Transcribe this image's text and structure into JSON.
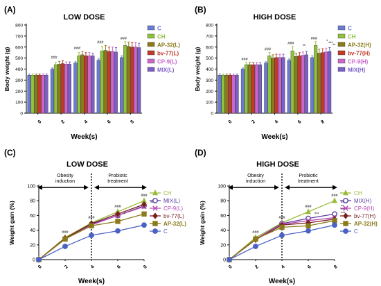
{
  "chart_data": [
    {
      "panel_label": "(A)",
      "type": "bar",
      "title": "LOW DOSE",
      "xlabel": "Week(s)",
      "ylabel": "Body weight (g)",
      "ylim": [
        0,
        800
      ],
      "yticks": [
        "0",
        "100",
        "200",
        "300",
        "400",
        "500",
        "600",
        "700",
        "800"
      ],
      "categories": [
        "0",
        "2",
        "4",
        "6",
        "8"
      ],
      "grid": false,
      "legend_position": "right",
      "series": [
        {
          "name": "C",
          "color": "#6b7bd4",
          "values": [
            345,
            400,
            455,
            480,
            505
          ],
          "errors": [
            10,
            10,
            12,
            12,
            15
          ]
        },
        {
          "name": "CH",
          "color": "#8fc23c",
          "values": [
            345,
            440,
            520,
            565,
            615
          ],
          "errors": [
            10,
            20,
            30,
            40,
            35
          ]
        },
        {
          "name": "AP-32(L)",
          "color": "#8b7a1a",
          "values": [
            345,
            445,
            530,
            570,
            605
          ],
          "errors": [
            10,
            25,
            30,
            45,
            40
          ]
        },
        {
          "name": "bv-77(L)",
          "color": "#c0392b",
          "values": [
            345,
            450,
            520,
            560,
            600
          ],
          "errors": [
            10,
            25,
            30,
            40,
            40
          ]
        },
        {
          "name": "CP-9(L)",
          "color": "#cc66cc",
          "values": [
            345,
            445,
            520,
            560,
            600
          ],
          "errors": [
            10,
            20,
            30,
            40,
            40
          ]
        },
        {
          "name": "MIX(L)",
          "color": "#7b5ec8",
          "values": [
            345,
            445,
            520,
            555,
            595
          ],
          "errors": [
            10,
            20,
            25,
            40,
            40
          ]
        }
      ],
      "annotations": [
        {
          "category": "2",
          "text": "###"
        },
        {
          "category": "4",
          "text": "###"
        },
        {
          "category": "6",
          "text": "###"
        },
        {
          "category": "8",
          "text": "###"
        }
      ]
    },
    {
      "panel_label": "(B)",
      "type": "bar",
      "title": "HIGH DOSE",
      "xlabel": "Week(s)",
      "ylabel": "Body weight (g)",
      "ylim": [
        0,
        800
      ],
      "yticks": [
        "0",
        "100",
        "200",
        "300",
        "400",
        "500",
        "600",
        "700",
        "800"
      ],
      "categories": [
        "0",
        "2",
        "4",
        "6",
        "8"
      ],
      "grid": false,
      "legend_position": "right",
      "series": [
        {
          "name": "C",
          "color": "#6b7bd4",
          "values": [
            345,
            400,
            455,
            480,
            505
          ],
          "errors": [
            10,
            10,
            12,
            12,
            15
          ]
        },
        {
          "name": "CH",
          "color": "#8fc23c",
          "values": [
            345,
            440,
            520,
            565,
            615
          ],
          "errors": [
            10,
            20,
            30,
            40,
            35
          ]
        },
        {
          "name": "AP-32(H)",
          "color": "#8b7a1a",
          "values": [
            345,
            440,
            500,
            515,
            545
          ],
          "errors": [
            10,
            20,
            30,
            30,
            35
          ]
        },
        {
          "name": "bv-77(H)",
          "color": "#c0392b",
          "values": [
            345,
            440,
            505,
            520,
            550
          ],
          "errors": [
            10,
            20,
            30,
            30,
            35
          ]
        },
        {
          "name": "CP-9(H)",
          "color": "#cc66cc",
          "values": [
            345,
            440,
            505,
            525,
            555
          ],
          "errors": [
            10,
            20,
            30,
            30,
            35
          ]
        },
        {
          "name": "MIX(H)",
          "color": "#7b5ec8",
          "values": [
            345,
            440,
            505,
            530,
            560
          ],
          "errors": [
            10,
            20,
            30,
            30,
            35
          ]
        }
      ],
      "annotations": [
        {
          "category": "2",
          "text": "###"
        },
        {
          "category": "4",
          "text": "###"
        },
        {
          "category": "6",
          "text": "###"
        },
        {
          "category": "6",
          "text": "**"
        },
        {
          "category": "8",
          "text": "###"
        },
        {
          "category": "8",
          "text": "*"
        },
        {
          "category": "8",
          "text": "***"
        },
        {
          "category": "8",
          "text": "**"
        }
      ]
    },
    {
      "panel_label": "(C)",
      "type": "line",
      "title": "LOW DOSE",
      "xlabel": "Week(s)",
      "ylabel": "Weight gain (%)",
      "ylim": [
        0,
        100
      ],
      "yticks": [
        "0",
        "20",
        "40",
        "60",
        "80",
        "100"
      ],
      "xticks": [
        "0",
        "2",
        "4",
        "6",
        "8"
      ],
      "x": [
        0,
        2,
        4,
        6,
        8
      ],
      "grid": false,
      "legend_position": "right",
      "phase_labels": {
        "left": [
          "Obesity",
          "induction"
        ],
        "right": [
          "Probiotic",
          "treatment"
        ]
      },
      "series": [
        {
          "name": "CH",
          "color": "#9bbb3c",
          "marker": "triangle",
          "values": [
            0,
            30,
            50,
            65,
            80
          ]
        },
        {
          "name": "MIX(L)",
          "color": "#5a3d9e",
          "marker": "circle",
          "values": [
            0,
            28,
            48,
            60,
            73
          ]
        },
        {
          "name": "CP-9(L)",
          "color": "#b54cb5",
          "marker": "x",
          "values": [
            0,
            28,
            47,
            60,
            72
          ]
        },
        {
          "name": "bv-77(L)",
          "color": "#7a1f1f",
          "marker": "diamond",
          "values": [
            0,
            29,
            49,
            62,
            75
          ]
        },
        {
          "name": "AP-32(L)",
          "color": "#8b7a1a",
          "marker": "square",
          "values": [
            0,
            28,
            46,
            52,
            62
          ]
        },
        {
          "name": "C",
          "color": "#4a62c4",
          "marker": "circle",
          "values": [
            0,
            18,
            33,
            39,
            47
          ]
        }
      ],
      "annotations": [
        {
          "x": 2,
          "text": "###"
        },
        {
          "x": 4,
          "text": "###"
        },
        {
          "x": 6,
          "text": "###"
        },
        {
          "x": 6,
          "text": "*"
        },
        {
          "x": 8,
          "text": "###"
        },
        {
          "x": 8,
          "text": "**"
        }
      ]
    },
    {
      "panel_label": "(D)",
      "type": "line",
      "title": "HIGH DOSE",
      "xlabel": "Week(s)",
      "ylabel": "Weight gain (%)",
      "ylim": [
        0,
        100
      ],
      "yticks": [
        "0",
        "20",
        "40",
        "60",
        "80",
        "100"
      ],
      "xticks": [
        "0",
        "2",
        "4",
        "6",
        "8"
      ],
      "x": [
        0,
        2,
        4,
        6,
        8
      ],
      "grid": false,
      "legend_position": "right",
      "phase_labels": {
        "left": [
          "Obesity",
          "induction"
        ],
        "right": [
          "Probiotic",
          "treatment"
        ]
      },
      "series": [
        {
          "name": "CH",
          "color": "#9bbb3c",
          "marker": "triangle",
          "values": [
            0,
            30,
            50,
            65,
            80
          ]
        },
        {
          "name": "MIX(H)",
          "color": "#5a3d9e",
          "marker": "circle",
          "values": [
            0,
            28,
            49,
            56,
            62
          ]
        },
        {
          "name": "CP-9(H)",
          "color": "#b54cb5",
          "marker": "x",
          "values": [
            0,
            28,
            48,
            53,
            57
          ]
        },
        {
          "name": "bv-77(H)",
          "color": "#7a1f1f",
          "marker": "diamond",
          "values": [
            0,
            27,
            47,
            50,
            55
          ]
        },
        {
          "name": "AP-32(H)",
          "color": "#8b7a1a",
          "marker": "square",
          "values": [
            0,
            28,
            44,
            46,
            53
          ]
        },
        {
          "name": "C",
          "color": "#4a62c4",
          "marker": "circle",
          "values": [
            0,
            18,
            33,
            39,
            47
          ]
        }
      ],
      "annotations": [
        {
          "x": 2,
          "text": "###"
        },
        {
          "x": 4,
          "text": "###"
        },
        {
          "x": 6,
          "text": "###"
        },
        {
          "x": 6,
          "text": "***"
        },
        {
          "x": 8,
          "text": "###"
        },
        {
          "x": 8,
          "text": "**"
        },
        {
          "x": 8,
          "text": "**"
        },
        {
          "x": 8,
          "text": "***"
        },
        {
          "x": 8,
          "text": "***"
        }
      ]
    }
  ]
}
